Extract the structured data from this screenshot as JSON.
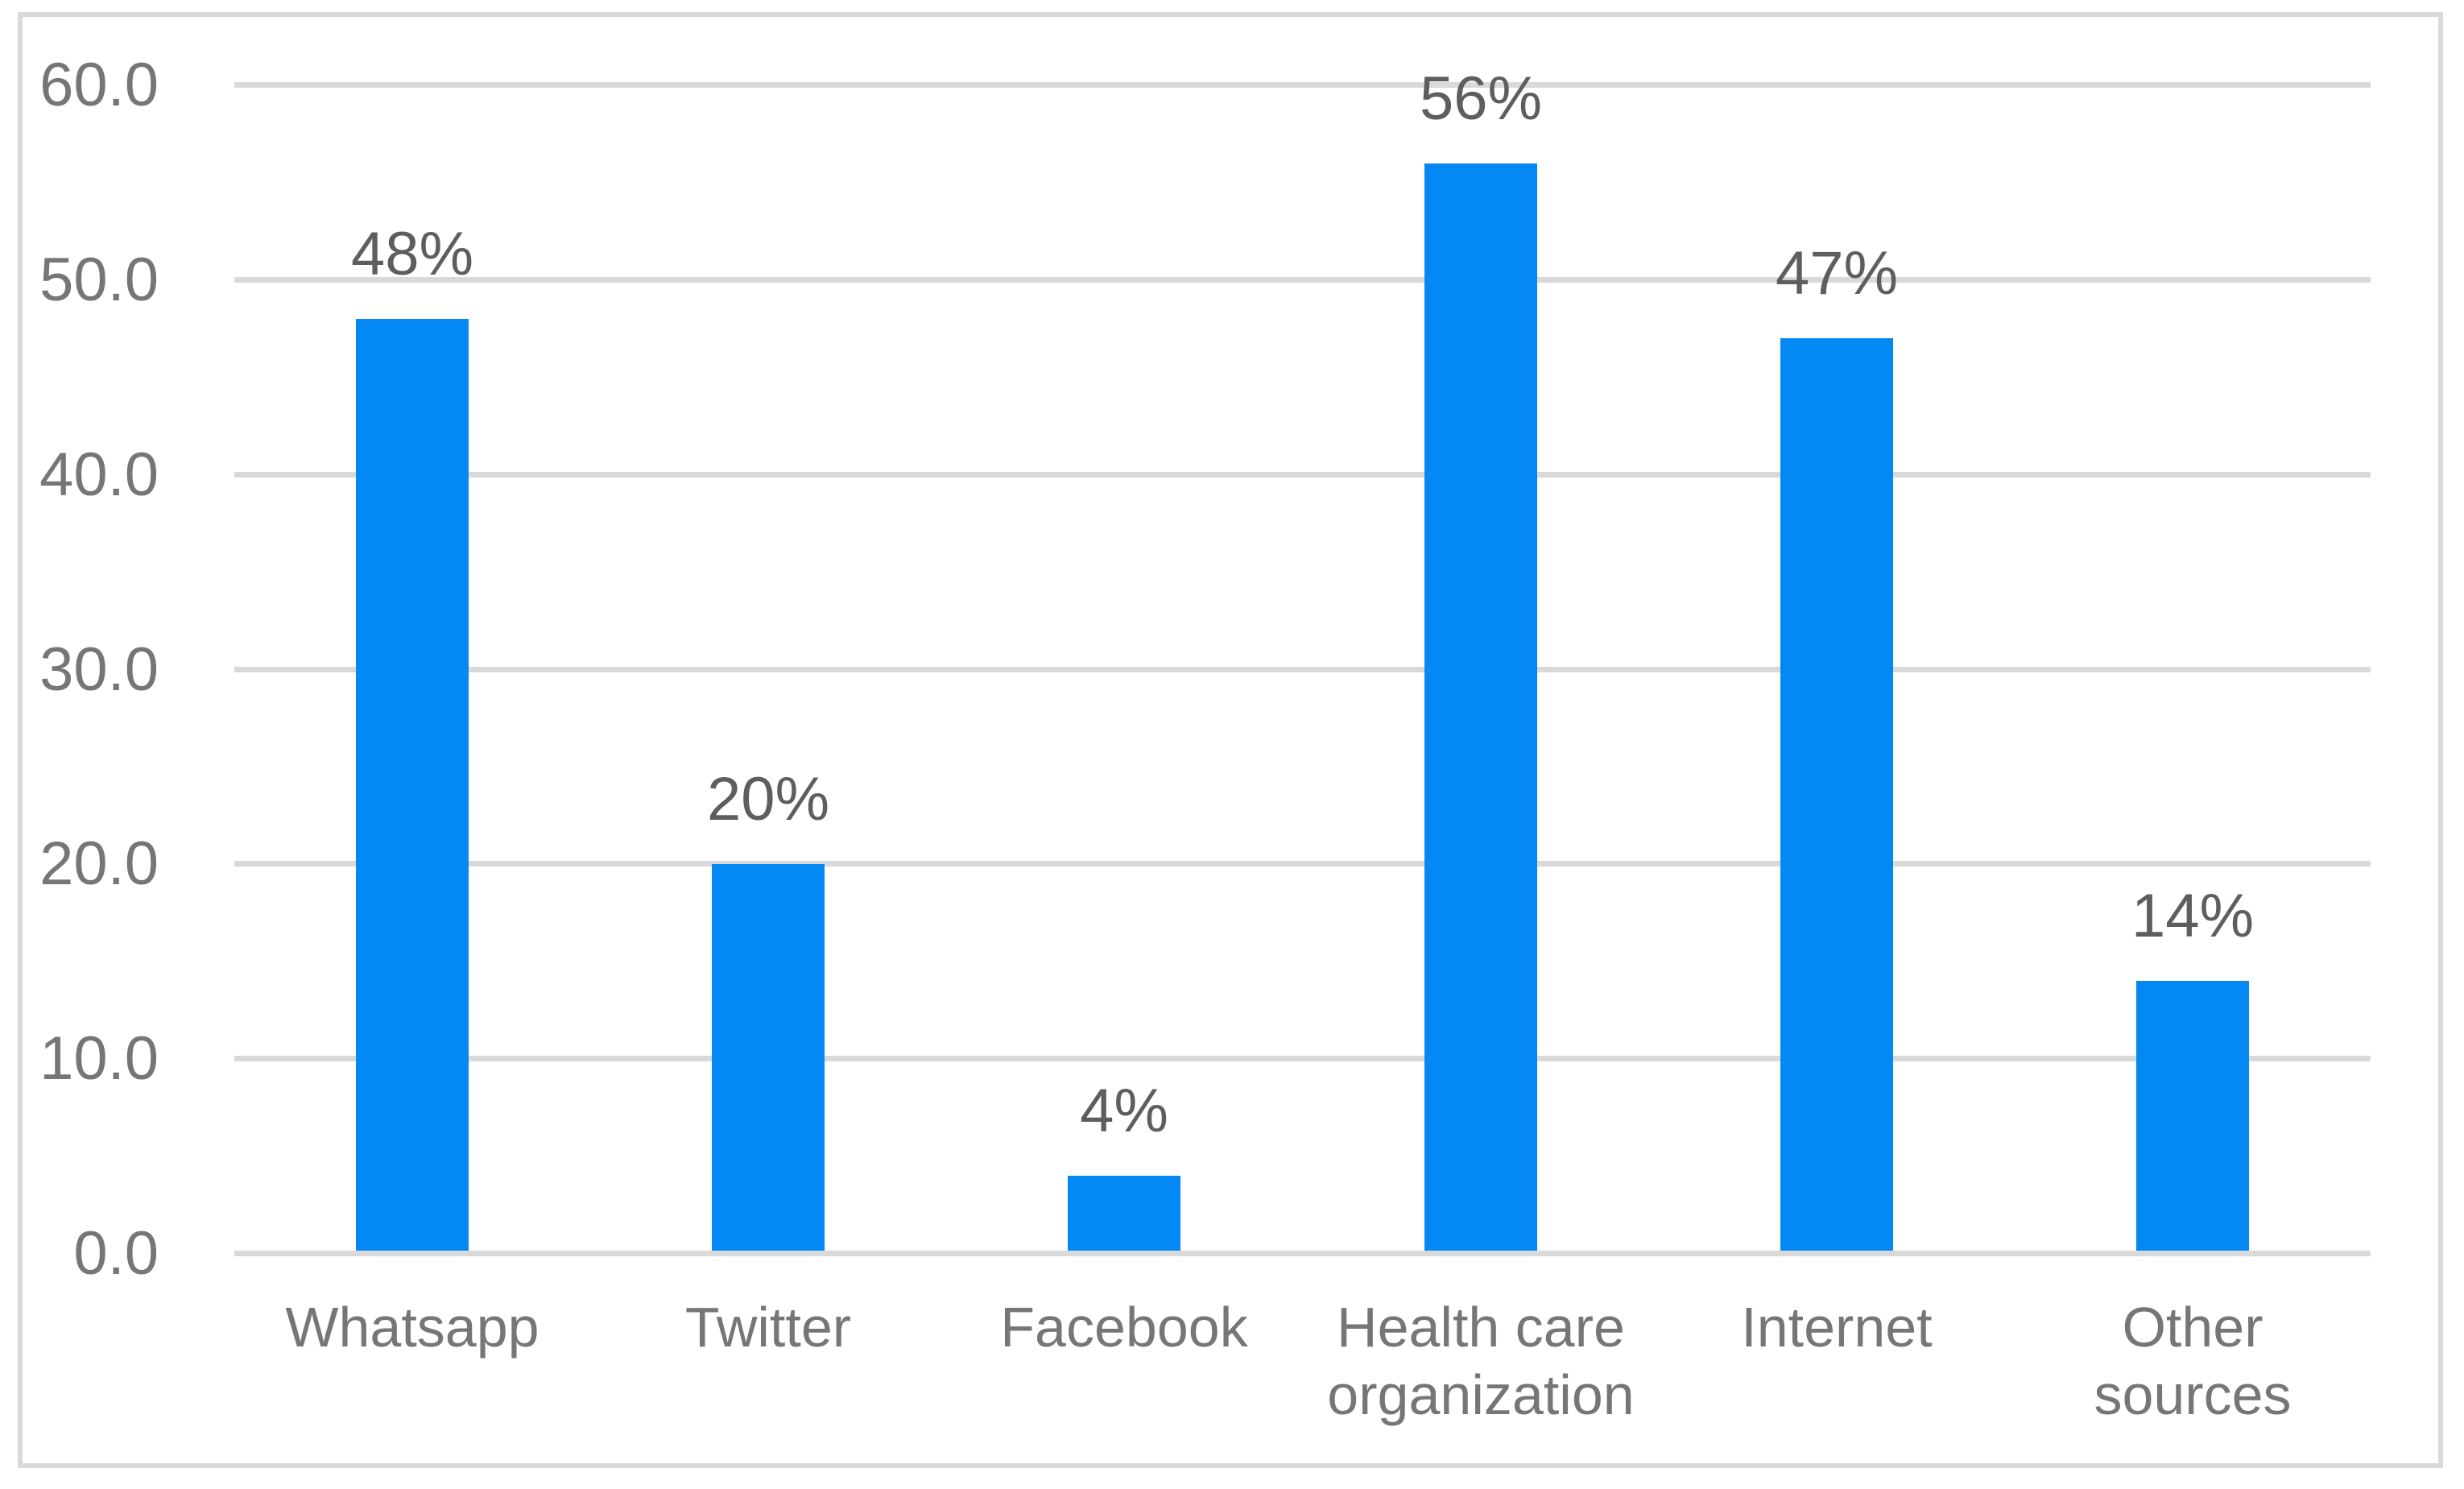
{
  "chart_data": {
    "type": "bar",
    "title": "",
    "xlabel": "",
    "ylabel": "",
    "categories": [
      "Whatsapp",
      "Twitter",
      "Facebook",
      "Health care organization",
      "Internet",
      "Other sources"
    ],
    "values": [
      48,
      20,
      4,
      56,
      47,
      14
    ],
    "data_labels": [
      "48%",
      "20%",
      "4%",
      "56%",
      "47%",
      "14%"
    ],
    "ylim": [
      0,
      60
    ],
    "ytick_step": 10,
    "ytick_labels": [
      "0.0",
      "10.0",
      "20.0",
      "30.0",
      "40.0",
      "50.0",
      "60.0"
    ],
    "grid": "horizontal",
    "legend_position": "none",
    "colors": {
      "bar": "#0488F4",
      "gridline": "#D9D9D9",
      "chart_border": "#D9D9D9",
      "value_label_text": "#5E5E5E",
      "axis_tick_text": "#767676",
      "category_text": "#767676",
      "background": "#FFFFFF"
    }
  }
}
